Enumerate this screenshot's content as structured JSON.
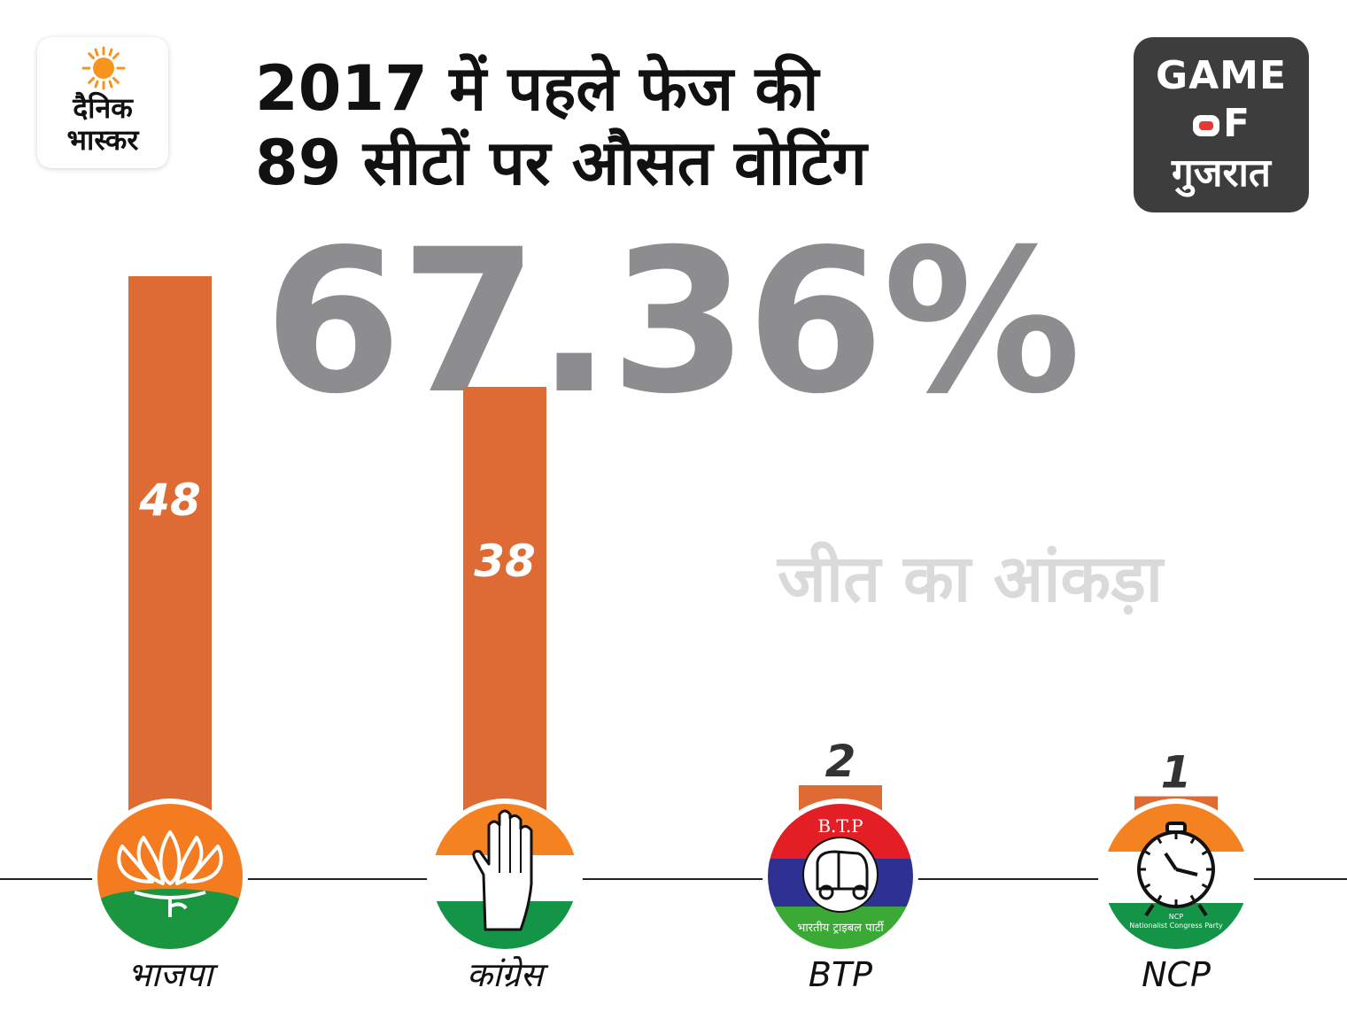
{
  "brand": {
    "name_line1": "दैनिक",
    "name_line2": "भास्कर"
  },
  "badge": {
    "line1": "GAME",
    "line2_rest": "F",
    "line3": "गुजरात"
  },
  "title_line1": "2017 में पहले फेज की",
  "title_line2": "89 सीटों पर औसत वोटिंग",
  "turnout": "67.36%",
  "win_label": "जीत का आंकड़ा",
  "colors": {
    "bar": "#de6a34",
    "big_number": "#8d8d8f",
    "badge_bg": "#3d3d3d"
  },
  "chart_data": {
    "type": "bar",
    "categories": [
      "भाजपा",
      "कांग्रेस",
      "BTP",
      "NCP"
    ],
    "values": [
      48,
      38,
      2,
      1
    ],
    "value_labels": [
      "48",
      "38",
      "2",
      "1"
    ],
    "label_inside": [
      true,
      true,
      false,
      false
    ],
    "icons": [
      "bjp-lotus-icon",
      "congress-hand-icon",
      "btp-rickshaw-icon",
      "ncp-clock-icon"
    ],
    "btp_logo_text_top": "B.T.P",
    "btp_logo_text_bottom": "भारतीय ट्राइबल पार्टी",
    "ncp_logo_text_small": "NCP",
    "ncp_logo_text": "Nationalist Congress Party",
    "grid": false,
    "legend": "none"
  }
}
